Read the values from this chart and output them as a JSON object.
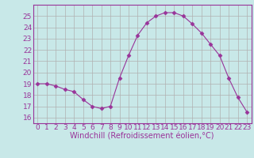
{
  "x": [
    0,
    1,
    2,
    3,
    4,
    5,
    6,
    7,
    8,
    9,
    10,
    11,
    12,
    13,
    14,
    15,
    16,
    17,
    18,
    19,
    20,
    21,
    22,
    23
  ],
  "y": [
    19.0,
    19.0,
    18.8,
    18.5,
    18.3,
    17.6,
    17.0,
    16.8,
    17.0,
    19.5,
    21.5,
    23.3,
    24.4,
    25.0,
    25.3,
    25.3,
    25.0,
    24.3,
    23.5,
    22.5,
    21.5,
    19.5,
    17.8,
    16.5
  ],
  "line_color": "#993399",
  "marker": "D",
  "marker_size": 2.5,
  "bg_color": "#c8e8e8",
  "grid_color": "#b0b0b0",
  "xlabel": "Windchill (Refroidissement éolien,°C)",
  "xlabel_fontsize": 7,
  "tick_fontsize": 6.5,
  "ylim": [
    15.5,
    26
  ],
  "yticks": [
    16,
    17,
    18,
    19,
    20,
    21,
    22,
    23,
    24,
    25
  ],
  "xlim": [
    -0.5,
    23.5
  ],
  "xticks": [
    0,
    1,
    2,
    3,
    4,
    5,
    6,
    7,
    8,
    9,
    10,
    11,
    12,
    13,
    14,
    15,
    16,
    17,
    18,
    19,
    20,
    21,
    22,
    23
  ]
}
